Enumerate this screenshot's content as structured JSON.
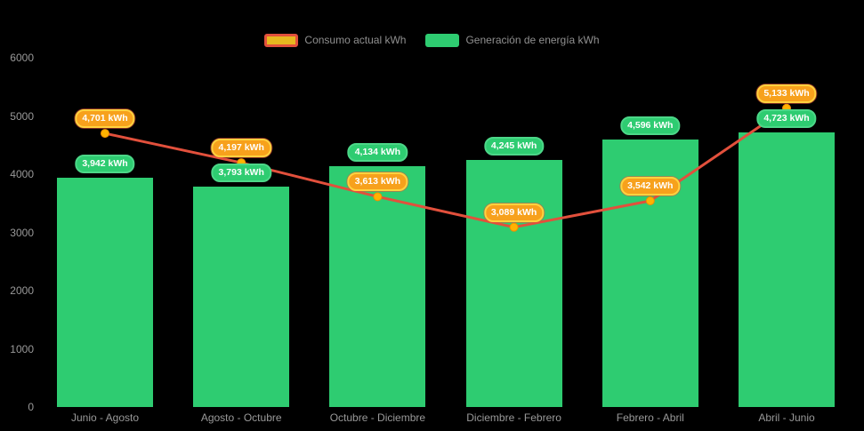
{
  "legend": {
    "items": [
      {
        "label": "Consumo actual kWh",
        "fill": "#e7b71f",
        "border": "#e2503c"
      },
      {
        "label": "Generación de energía kWh",
        "fill": "#2ecc71",
        "border": "#2ecc71"
      }
    ]
  },
  "chart_data": {
    "type": "bar+line",
    "categories": [
      "Junio - Agosto",
      "Agosto - Octubre",
      "Octubre - Diciembre",
      "Diciembre - Febrero",
      "Febrero - Abril",
      "Abril - Junio"
    ],
    "series": [
      {
        "name": "Generación de energía kWh",
        "type": "bar",
        "color": "#2ecc71",
        "values": [
          3942,
          3793,
          4134,
          4245,
          4596,
          4723
        ],
        "labels": [
          "3,942 kWh",
          "3,793 kWh",
          "4,134 kWh",
          "4,245 kWh",
          "4,596 kWh",
          "4,723 kWh"
        ]
      },
      {
        "name": "Consumo actual kWh",
        "type": "line",
        "color": "#e2503c",
        "marker_fill": "#ffb300",
        "marker_stroke": "#f08c00",
        "values": [
          4701,
          4197,
          3613,
          3089,
          3542,
          5133
        ],
        "labels": [
          "4,701 kWh",
          "4,197 kWh",
          "3,613 kWh",
          "3,089 kWh",
          "3,542 kWh",
          "5,133 kWh"
        ]
      }
    ],
    "ylim": [
      0,
      6000
    ],
    "yticks": [
      6000,
      5000,
      4000,
      3000,
      2000,
      1000,
      0
    ],
    "ytick_labels": [
      "6000",
      "5000",
      "4000",
      "3000",
      "2000",
      "1000",
      "0"
    ],
    "grid": false,
    "legend_position": "top-center"
  },
  "colors": {
    "background": "#000000",
    "axis_text": "#999999",
    "legend_text": "#909090"
  }
}
